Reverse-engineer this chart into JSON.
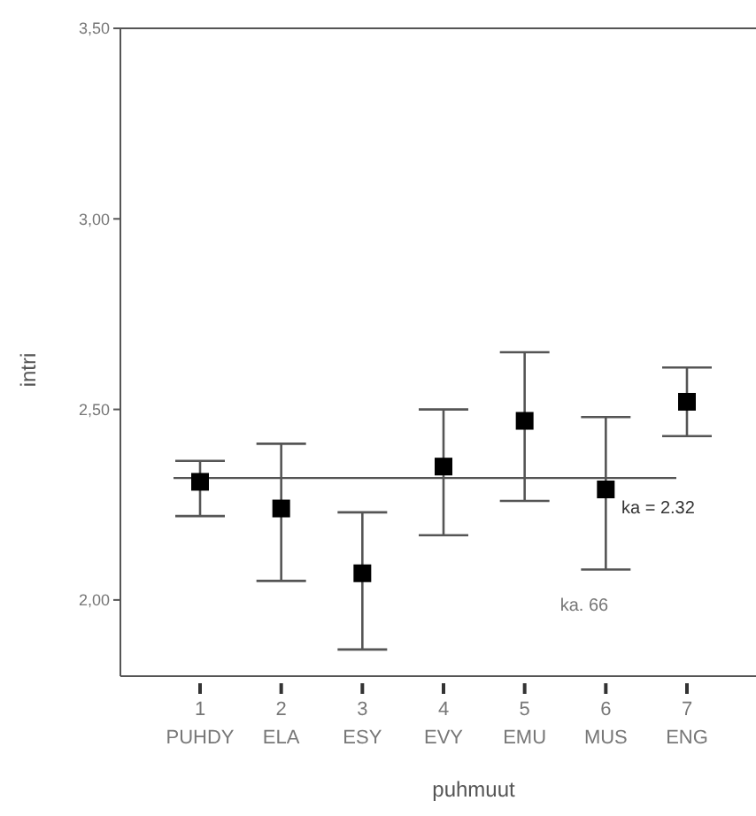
{
  "chart_data": {
    "type": "scatter",
    "xlabel": "puhmuut",
    "ylabel": "intri",
    "categories": [
      "1\nPUHDY",
      "2\nELA",
      "3\nESY",
      "4\nEVY",
      "5\nEMU",
      "6\nMUS",
      "7\nENG"
    ],
    "values": [
      2.31,
      2.24,
      2.07,
      2.35,
      2.47,
      2.29,
      2.52
    ],
    "errors": [
      [
        2.22,
        2.365
      ],
      [
        2.05,
        2.41
      ],
      [
        1.87,
        2.23
      ],
      [
        2.17,
        2.5
      ],
      [
        2.26,
        2.65
      ],
      [
        2.08,
        2.48
      ],
      [
        2.43,
        2.61
      ]
    ],
    "color": "#000000",
    "marker": "square",
    "ylim": [
      1.8,
      3.5
    ],
    "yticks": [
      {
        "value": 2,
        "label": "2,00"
      },
      {
        "value": 2.5,
        "label": "2,50"
      },
      {
        "value": 3,
        "label": "3,00"
      },
      {
        "value": 3.5,
        "label": "3,50"
      }
    ],
    "ref_lines": [
      {
        "axis": "y",
        "value": 2.32,
        "label": "ka = 2.32"
      }
    ],
    "annotations": [
      "ka. 66"
    ]
  }
}
